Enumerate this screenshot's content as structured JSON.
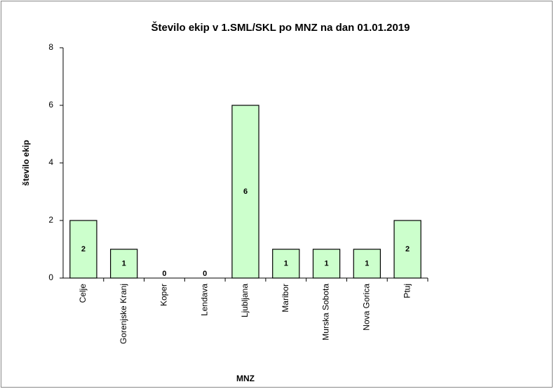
{
  "chart_data": {
    "type": "bar",
    "title": "Število ekip v 1.SML/SKL po MNZ na dan 01.01.2019",
    "x_label": "MNZ",
    "y_label": "število ekip",
    "categories": [
      "Celje",
      "Gorenjske Kranj",
      "Koper",
      "Lendava",
      "Ljubljana",
      "Maribor",
      "Murska Sobota",
      "Nova Gorica",
      "Ptuj"
    ],
    "values": [
      2,
      1,
      0,
      0,
      6,
      1,
      1,
      1,
      2
    ],
    "color": "#ccffcc",
    "ylim": [
      0,
      8
    ],
    "yticks": [
      0,
      2,
      4,
      6,
      8
    ],
    "grid": false
  }
}
